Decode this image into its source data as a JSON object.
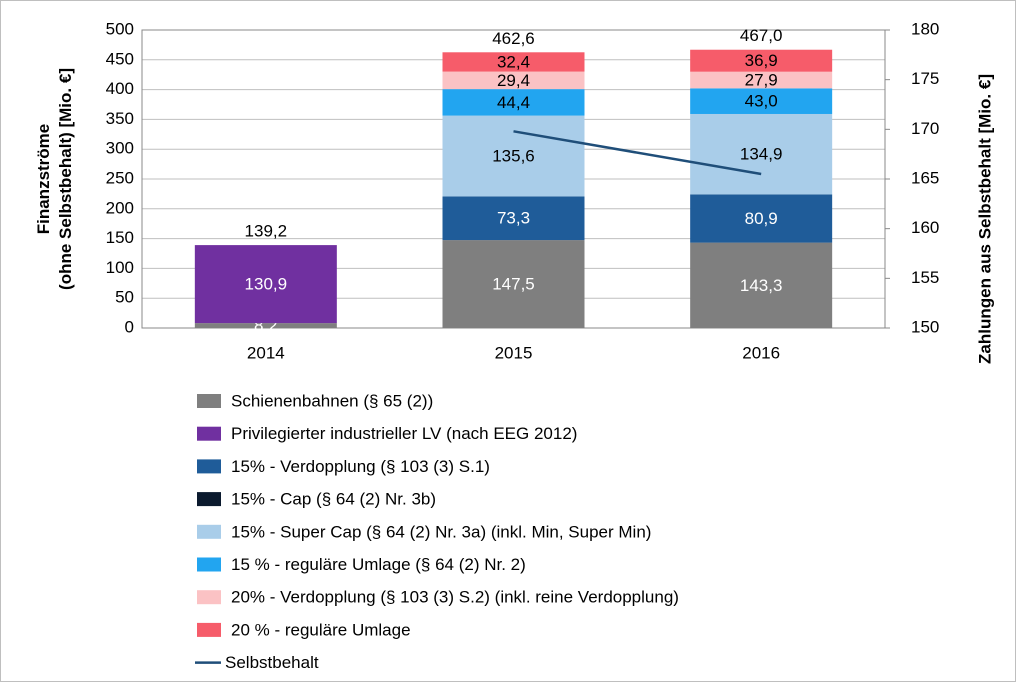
{
  "chart_data": {
    "type": "bar",
    "stacked": true,
    "categories": [
      "2014",
      "2015",
      "2016"
    ],
    "series": [
      {
        "name": "Schienenbahnen (§ 65 (2))",
        "color": "#7f7f7f",
        "values": [
          8.2,
          147.5,
          143.3
        ],
        "value_labels": [
          "8,2",
          "147,5",
          "143,3"
        ],
        "label_color": "#ffffff"
      },
      {
        "name": "Privilegierter industrieller LV (nach EEG 2012)",
        "color": "#7030a0",
        "values": [
          130.9,
          null,
          null
        ],
        "value_labels": [
          "130,9",
          null,
          null
        ],
        "label_color": "#ffffff"
      },
      {
        "name": "15% - Verdopplung (§ 103 (3) S.1)",
        "color": "#1f5c99",
        "values": [
          null,
          73.3,
          80.9
        ],
        "value_labels": [
          null,
          "73,3",
          "80,9"
        ],
        "label_color": "#ffffff"
      },
      {
        "name": "15% - Cap (§ 64 (2) Nr. 3b)",
        "color": "#0b1a2e",
        "values": [
          null,
          null,
          null
        ]
      },
      {
        "name": "15% - Super Cap (§ 64 (2) Nr. 3a) (inkl. Min, Super Min)",
        "color": "#a9cde9",
        "values": [
          null,
          135.6,
          134.9
        ],
        "value_labels": [
          null,
          "135,6",
          "134,9"
        ],
        "label_color": "#000000"
      },
      {
        "name": "15 % - reguläre Umlage (§ 64 (2) Nr. 2)",
        "color": "#22a5f0",
        "values": [
          null,
          44.4,
          43.0
        ],
        "value_labels": [
          null,
          "44,4",
          "43,0"
        ],
        "label_color": "#000000"
      },
      {
        "name": "20% - Verdopplung (§ 103 (3) S.2) (inkl. reine Verdopplung)",
        "color": "#fbc2c4",
        "values": [
          null,
          29.4,
          27.9
        ],
        "value_labels": [
          null,
          "29,4",
          "27,9"
        ],
        "label_color": "#000000"
      },
      {
        "name": "20 % - reguläre Umlage",
        "color": "#f65c6a",
        "values": [
          null,
          32.4,
          36.9
        ],
        "value_labels": [
          null,
          "32,4",
          "36,9"
        ],
        "label_color": "#000000"
      },
      {
        "name": "Selbstbehalt",
        "color": "#1f4e79",
        "type": "line",
        "axis": "y2",
        "values": [
          null,
          169.8,
          165.5
        ]
      }
    ],
    "totals": [
      139.2,
      462.6,
      467.0
    ],
    "total_labels": [
      "139,2",
      "462,6",
      "467,0"
    ],
    "y_label": [
      "Finanzströme",
      "(ohne Selbstbehalt) [Mio. €]"
    ],
    "y2_label": "Zahlungen aus Selbstbehalt [Mio. €]",
    "ylim": [
      0,
      500
    ],
    "yticks": [
      0,
      50,
      100,
      150,
      200,
      250,
      300,
      350,
      400,
      450,
      500
    ],
    "y2lim": [
      150,
      180
    ],
    "y2ticks": [
      150,
      155,
      160,
      165,
      170,
      175,
      180
    ],
    "grid": true
  }
}
